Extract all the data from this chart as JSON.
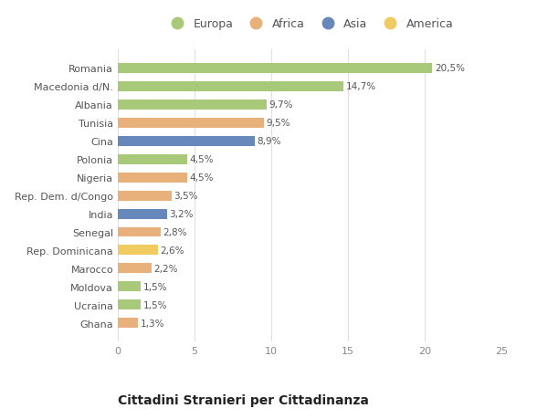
{
  "categories": [
    "Romania",
    "Macedonia d/N.",
    "Albania",
    "Tunisia",
    "Cina",
    "Polonia",
    "Nigeria",
    "Rep. Dem. d/Congo",
    "India",
    "Senegal",
    "Rep. Dominicana",
    "Marocco",
    "Moldova",
    "Ucraina",
    "Ghana"
  ],
  "values": [
    20.5,
    14.7,
    9.7,
    9.5,
    8.9,
    4.5,
    4.5,
    3.5,
    3.2,
    2.8,
    2.6,
    2.2,
    1.5,
    1.5,
    1.3
  ],
  "labels": [
    "20,5%",
    "14,7%",
    "9,7%",
    "9,5%",
    "8,9%",
    "4,5%",
    "4,5%",
    "3,5%",
    "3,2%",
    "2,8%",
    "2,6%",
    "2,2%",
    "1,5%",
    "1,5%",
    "1,3%"
  ],
  "continents": [
    "Europa",
    "Europa",
    "Europa",
    "Africa",
    "Asia",
    "Europa",
    "Africa",
    "Africa",
    "Asia",
    "Africa",
    "America",
    "Africa",
    "Europa",
    "Europa",
    "Africa"
  ],
  "continent_colors": {
    "Europa": "#a8c87a",
    "Africa": "#e8b07a",
    "Asia": "#6688bb",
    "America": "#f0cc60"
  },
  "legend_order": [
    "Europa",
    "Africa",
    "Asia",
    "America"
  ],
  "title": "Cittadini Stranieri per Cittadinanza",
  "xlim": [
    0,
    25
  ],
  "xticks": [
    0,
    5,
    10,
    15,
    20,
    25
  ],
  "background_color": "#ffffff",
  "grid_color": "#e0e0e0",
  "bar_height": 0.55,
  "title_fontsize": 10,
  "subtitle_fontsize": 7,
  "label_fontsize": 7.5,
  "tick_fontsize": 8,
  "legend_fontsize": 9
}
